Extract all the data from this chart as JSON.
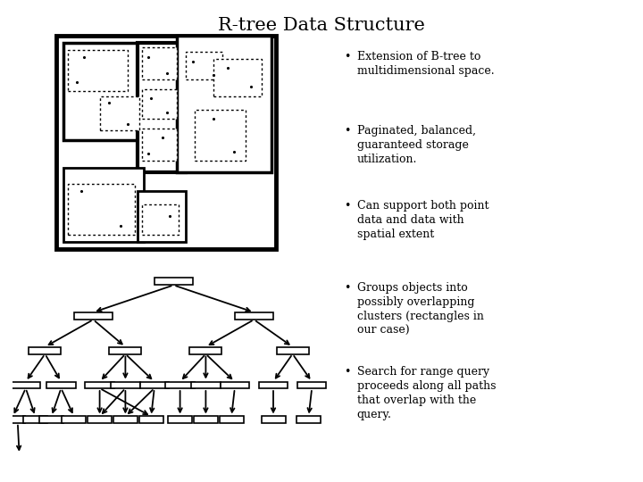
{
  "title": "R-tree Data Structure",
  "title_fontsize": 15,
  "bullet_points": [
    "Extension of B-tree to\nmultidimensional space.",
    "Paginated, balanced,\nguaranteed storage\nutilization.",
    "Can support both point\ndata and data with\nspatial extent",
    "Groups objects into\npossibly overlapping\nclusters (rectangles in\nour case)",
    "Search for range query\nproceeds along all paths\nthat overlap with the\nquery."
  ],
  "bullet_fontsize": 9,
  "bg_color": "#ffffff"
}
